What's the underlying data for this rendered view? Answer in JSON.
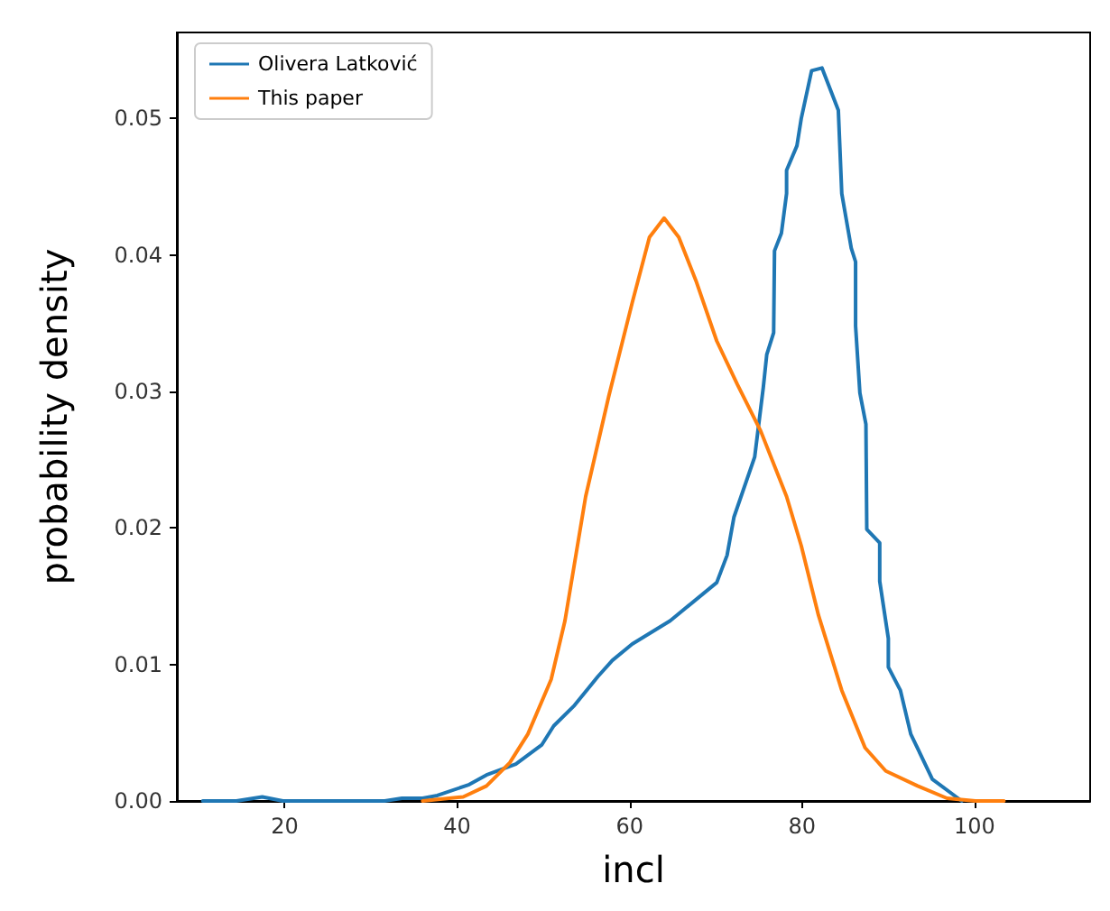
{
  "chart_data": {
    "type": "line",
    "xlabel": "incl",
    "ylabel": "probability density",
    "xlim": [
      7.5,
      113.4
    ],
    "ylim": [
      0,
      0.0563
    ],
    "xticks": [
      20,
      40,
      60,
      80,
      100
    ],
    "yticks": [
      {
        "value": 0,
        "label": "0.00"
      },
      {
        "value": 0.01,
        "label": "0.01"
      },
      {
        "value": 0.02,
        "label": "0.02"
      },
      {
        "value": 0.03,
        "label": "0.03"
      },
      {
        "value": 0.04,
        "label": "0.04"
      },
      {
        "value": 0.05,
        "label": "0.05"
      }
    ],
    "grid": false,
    "legend": "top left",
    "marker": "none",
    "line_style": "solid",
    "series": [
      {
        "name": "Olivera Latković",
        "color": "#1f77b4",
        "x": [
          10.5,
          14.4,
          17.4,
          19.8,
          31.6,
          33.6,
          36,
          37.7,
          41.4,
          43.4,
          46.8,
          49.8,
          51.2,
          53.6,
          56.3,
          58,
          60.3,
          64.7,
          70.1,
          71.3,
          72.1,
          74.5,
          75.5,
          75.9,
          76.7,
          76.8,
          77.6,
          78.2,
          78.2,
          79.4,
          79.9,
          81.1,
          82.3,
          84.2,
          84.6,
          85.7,
          86.2,
          86.2,
          86.7,
          87.4,
          87.5,
          89.0,
          89.0,
          90.0,
          90.0,
          91.4,
          92.6,
          95.1,
          98.5
        ],
        "values": [
          0,
          0,
          0.0003,
          0,
          0,
          0.0002,
          0.0002,
          0.0004,
          0.0012,
          0.0019,
          0.0027,
          0.0041,
          0.0055,
          0.007,
          0.0091,
          0.0103,
          0.0115,
          0.0132,
          0.016,
          0.018,
          0.0208,
          0.0252,
          0.0303,
          0.0327,
          0.0343,
          0.0403,
          0.0416,
          0.0445,
          0.0462,
          0.048,
          0.05,
          0.0535,
          0.0537,
          0.0506,
          0.0445,
          0.0405,
          0.0395,
          0.0348,
          0.0299,
          0.0276,
          0.0199,
          0.0189,
          0.0161,
          0.0119,
          0.0098,
          0.0081,
          0.0049,
          0.0016,
          0
        ]
      },
      {
        "name": "This paper",
        "color": "#ff7f0e",
        "x": [
          36,
          40.7,
          43.4,
          46.1,
          48.2,
          50.9,
          52.5,
          54.9,
          57.6,
          60.3,
          62.3,
          64,
          65.7,
          67.7,
          70.1,
          72.5,
          75.2,
          78.2,
          79.9,
          81.9,
          84.6,
          87.3,
          89.7,
          93.4,
          96.8,
          100.1,
          103.4
        ],
        "values": [
          0,
          0.0003,
          0.0011,
          0.0028,
          0.0049,
          0.0089,
          0.0132,
          0.0223,
          0.0297,
          0.0365,
          0.0413,
          0.0427,
          0.0413,
          0.0381,
          0.0337,
          0.0305,
          0.0271,
          0.0223,
          0.0187,
          0.0136,
          0.0081,
          0.0039,
          0.0022,
          0.0011,
          0.0002,
          0,
          0
        ]
      }
    ]
  }
}
